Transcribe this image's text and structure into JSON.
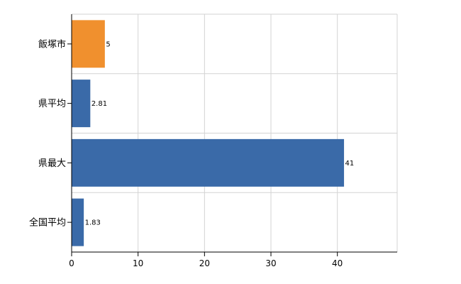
{
  "chart_data": {
    "type": "bar",
    "orientation": "horizontal",
    "categories": [
      "飯塚市",
      "県平均",
      "県最大",
      "全国平均"
    ],
    "values": [
      5,
      2.81,
      41,
      1.83
    ],
    "data_labels": [
      "5",
      "2.81",
      "41",
      "1.83"
    ],
    "bar_colors": [
      "#f0902e",
      "#3a6aa8",
      "#3a6aa8",
      "#3a6aa8"
    ],
    "xlim": [
      0,
      49
    ],
    "x_ticks": [
      0,
      10,
      20,
      30,
      40
    ],
    "x_tick_labels": [
      "0",
      "10",
      "20",
      "30",
      "40"
    ],
    "grid": true,
    "grid_color": "#d3d3d3",
    "title": "",
    "xlabel": "",
    "ylabel": ""
  }
}
